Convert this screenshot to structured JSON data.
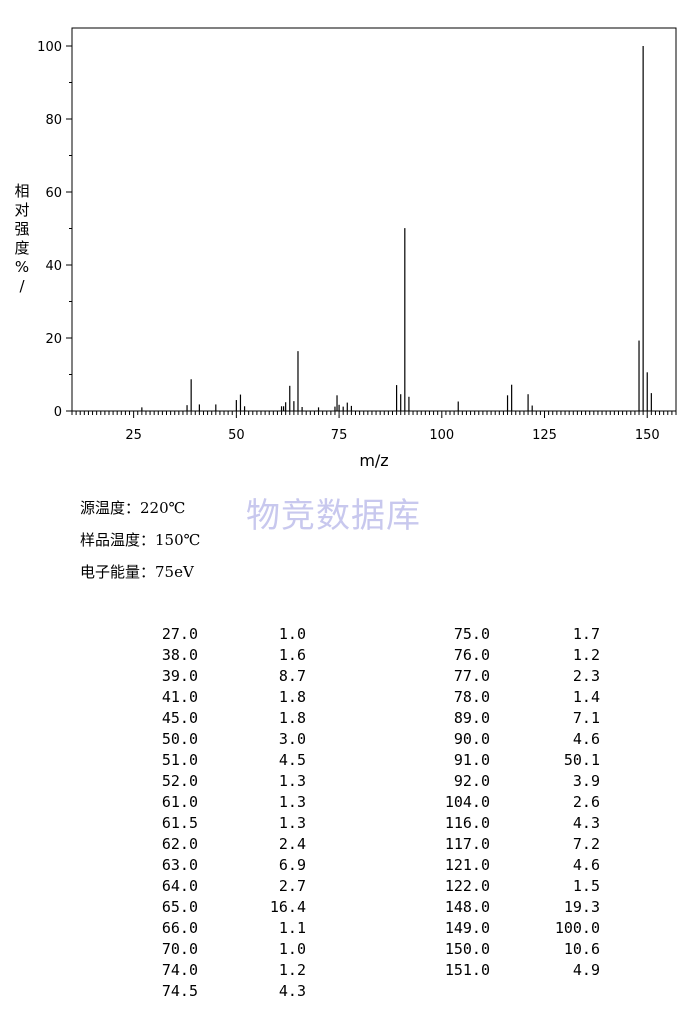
{
  "chart_data": {
    "type": "bar",
    "xlabel": "m/z",
    "ylabel": "相对强度%/",
    "xlim": [
      10,
      157
    ],
    "ylim": [
      0,
      100
    ],
    "xticks": [
      "25",
      "50",
      "75",
      "100",
      "125",
      "150"
    ],
    "yticks": [
      "0",
      "20",
      "40",
      "60",
      "80",
      "100"
    ],
    "peaks": [
      {
        "mz": 27.0,
        "intensity": 1.0
      },
      {
        "mz": 38.0,
        "intensity": 1.6
      },
      {
        "mz": 39.0,
        "intensity": 8.7
      },
      {
        "mz": 41.0,
        "intensity": 1.8
      },
      {
        "mz": 45.0,
        "intensity": 1.8
      },
      {
        "mz": 50.0,
        "intensity": 3.0
      },
      {
        "mz": 51.0,
        "intensity": 4.5
      },
      {
        "mz": 52.0,
        "intensity": 1.3
      },
      {
        "mz": 61.0,
        "intensity": 1.3
      },
      {
        "mz": 61.5,
        "intensity": 1.3
      },
      {
        "mz": 62.0,
        "intensity": 2.4
      },
      {
        "mz": 63.0,
        "intensity": 6.9
      },
      {
        "mz": 64.0,
        "intensity": 2.7
      },
      {
        "mz": 65.0,
        "intensity": 16.4
      },
      {
        "mz": 66.0,
        "intensity": 1.1
      },
      {
        "mz": 70.0,
        "intensity": 1.0
      },
      {
        "mz": 74.0,
        "intensity": 1.2
      },
      {
        "mz": 74.5,
        "intensity": 4.3
      },
      {
        "mz": 75.0,
        "intensity": 1.7
      },
      {
        "mz": 76.0,
        "intensity": 1.2
      },
      {
        "mz": 77.0,
        "intensity": 2.3
      },
      {
        "mz": 78.0,
        "intensity": 1.4
      },
      {
        "mz": 89.0,
        "intensity": 7.1
      },
      {
        "mz": 90.0,
        "intensity": 4.6
      },
      {
        "mz": 91.0,
        "intensity": 50.1
      },
      {
        "mz": 92.0,
        "intensity": 3.9
      },
      {
        "mz": 104.0,
        "intensity": 2.6
      },
      {
        "mz": 116.0,
        "intensity": 4.3
      },
      {
        "mz": 117.0,
        "intensity": 7.2
      },
      {
        "mz": 121.0,
        "intensity": 4.6
      },
      {
        "mz": 122.0,
        "intensity": 1.5
      },
      {
        "mz": 148.0,
        "intensity": 19.3
      },
      {
        "mz": 149.0,
        "intensity": 100.0
      },
      {
        "mz": 150.0,
        "intensity": 10.6
      },
      {
        "mz": 151.0,
        "intensity": 4.9
      }
    ]
  },
  "info": {
    "source_temp": "源温度：220℃",
    "sample_temp": "样品温度：150℃",
    "electron_energy": "电子能量：75eV"
  },
  "watermark": "物竞数据库",
  "table": {
    "left": [
      [
        "27.0",
        "1.0"
      ],
      [
        "38.0",
        "1.6"
      ],
      [
        "39.0",
        "8.7"
      ],
      [
        "41.0",
        "1.8"
      ],
      [
        "45.0",
        "1.8"
      ],
      [
        "50.0",
        "3.0"
      ],
      [
        "51.0",
        "4.5"
      ],
      [
        "52.0",
        "1.3"
      ],
      [
        "61.0",
        "1.3"
      ],
      [
        "61.5",
        "1.3"
      ],
      [
        "62.0",
        "2.4"
      ],
      [
        "63.0",
        "6.9"
      ],
      [
        "64.0",
        "2.7"
      ],
      [
        "65.0",
        "16.4"
      ],
      [
        "66.0",
        "1.1"
      ],
      [
        "70.0",
        "1.0"
      ],
      [
        "74.0",
        "1.2"
      ],
      [
        "74.5",
        "4.3"
      ]
    ],
    "right": [
      [
        "75.0",
        "1.7"
      ],
      [
        "76.0",
        "1.2"
      ],
      [
        "77.0",
        "2.3"
      ],
      [
        "78.0",
        "1.4"
      ],
      [
        "89.0",
        "7.1"
      ],
      [
        "90.0",
        "4.6"
      ],
      [
        "91.0",
        "50.1"
      ],
      [
        "92.0",
        "3.9"
      ],
      [
        "104.0",
        "2.6"
      ],
      [
        "116.0",
        "4.3"
      ],
      [
        "117.0",
        "7.2"
      ],
      [
        "121.0",
        "4.6"
      ],
      [
        "122.0",
        "1.5"
      ],
      [
        "148.0",
        "19.3"
      ],
      [
        "149.0",
        "100.0"
      ],
      [
        "150.0",
        "10.6"
      ],
      [
        "151.0",
        "4.9"
      ]
    ]
  }
}
